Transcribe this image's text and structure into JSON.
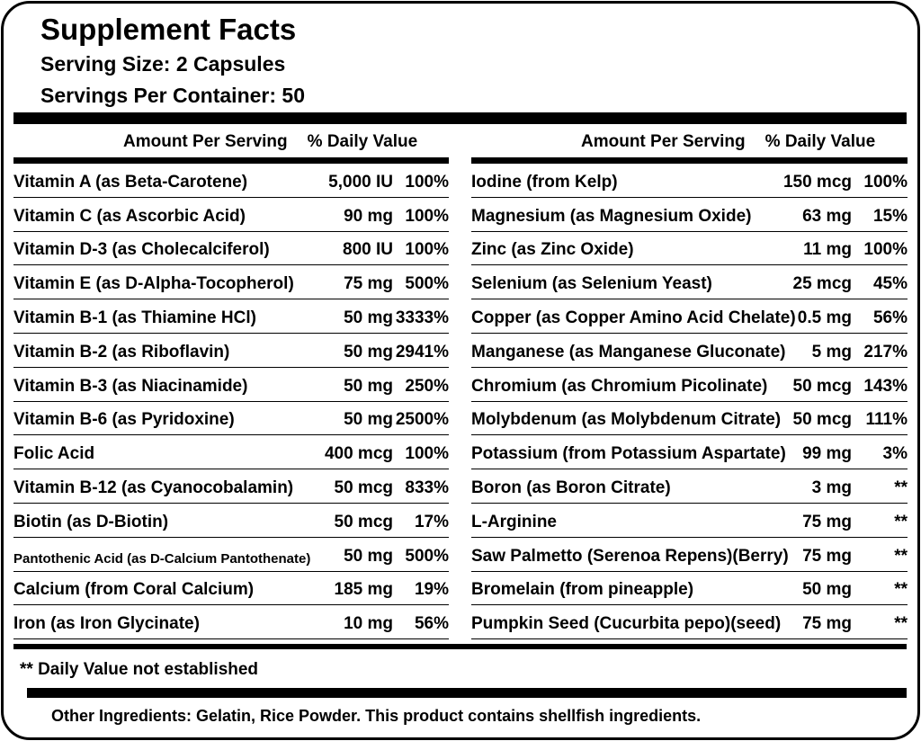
{
  "header": {
    "title": "Supplement Facts",
    "serving_size": "Serving Size: 2 Capsules",
    "servings_per_container": "Servings Per Container: 50"
  },
  "left": {
    "columns": [
      "Amount Per Serving",
      "% Daily Value"
    ],
    "rows": [
      [
        "Vitamin A (as Beta-Carotene)",
        "5,000 IU",
        "100%"
      ],
      [
        "Vitamin C (as Ascorbic Acid)",
        "90 mg",
        "100%"
      ],
      [
        "Vitamin D-3 (as Cholecalciferol)",
        "800 IU",
        "100%"
      ],
      [
        "Vitamin E (as D-Alpha-Tocopherol)",
        "75 mg",
        "500%"
      ],
      [
        "Vitamin B-1 (as Thiamine HCl)",
        "50 mg",
        "3333%"
      ],
      [
        "Vitamin B-2 (as Riboflavin)",
        "50 mg",
        "2941%"
      ],
      [
        "Vitamin B-3 (as Niacinamide)",
        "50 mg",
        "250%"
      ],
      [
        "Vitamin B-6 (as Pyridoxine)",
        "50 mg",
        "2500%"
      ],
      [
        "Folic Acid",
        "400 mcg",
        "100%"
      ],
      [
        "Vitamin B-12 (as Cyanocobalamin)",
        "50 mcg",
        "833%"
      ],
      [
        "Biotin (as D-Biotin)",
        "50 mcg",
        "17%"
      ],
      [
        "Pantothenic Acid (as D-Calcium Pantothenate)",
        "50 mg",
        "500%"
      ],
      [
        "Calcium (from Coral Calcium)",
        "185 mg",
        "19%"
      ],
      [
        "Iron (as Iron Glycinate)",
        "10 mg",
        "56%"
      ]
    ]
  },
  "right": {
    "columns": [
      "Amount Per Serving",
      "% Daily Value"
    ],
    "rows": [
      [
        "Iodine (from Kelp)",
        "150 mcg",
        "100%"
      ],
      [
        "Magnesium (as Magnesium Oxide)",
        "63 mg",
        "15%"
      ],
      [
        "Zinc (as Zinc Oxide)",
        "11 mg",
        "100%"
      ],
      [
        "Selenium (as Selenium Yeast)",
        "25 mcg",
        "45%"
      ],
      [
        "Copper (as Copper Amino Acid Chelate)",
        "0.5 mg",
        "56%"
      ],
      [
        "Manganese (as Manganese Gluconate)",
        "5 mg",
        "217%"
      ],
      [
        "Chromium (as Chromium Picolinate)",
        "50 mcg",
        "143%"
      ],
      [
        "Molybdenum (as Molybdenum Citrate)",
        "50 mcg",
        "111%"
      ],
      [
        "Potassium (from Potassium Aspartate)",
        "99 mg",
        "3%"
      ],
      [
        "Boron (as Boron Citrate)",
        "3 mg",
        "**"
      ],
      [
        "L-Arginine",
        "75 mg",
        "**"
      ],
      [
        "Saw Palmetto (Serenoa Repens)(Berry)",
        "75 mg",
        "**"
      ],
      [
        "Bromelain (from pineapple)",
        "50 mg",
        "**"
      ],
      [
        "Pumpkin Seed (Cucurbita pepo)(seed)",
        "75 mg",
        "**"
      ]
    ]
  },
  "footnote": "** Daily Value not established",
  "other_ingredients": "Other Ingredients: Gelatin, Rice Powder. This product contains shellfish ingredients."
}
